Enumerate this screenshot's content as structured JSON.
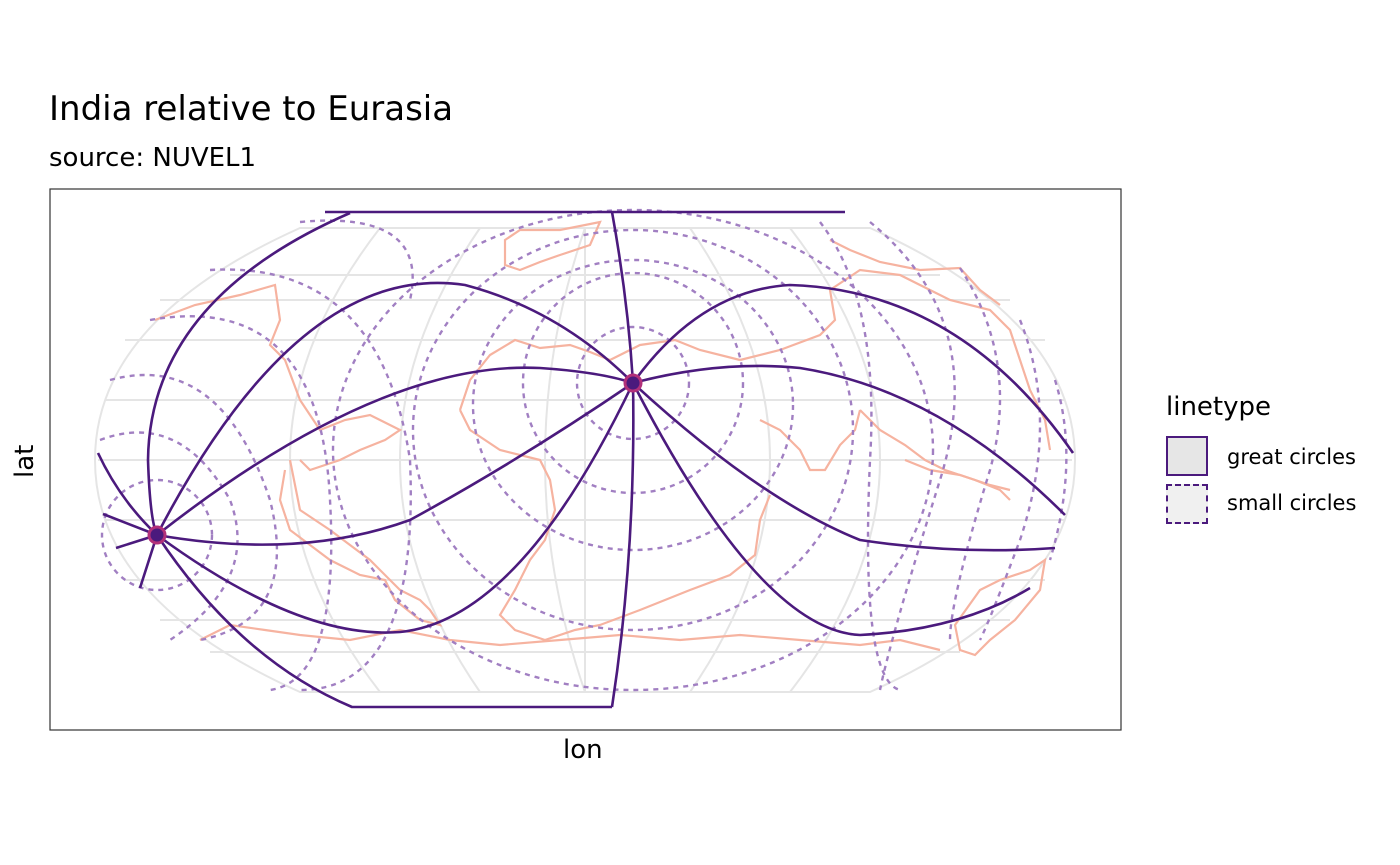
{
  "title": "India relative to Eurasia",
  "subtitle": "source: NUVEL1",
  "axes": {
    "xlabel": "lon",
    "ylabel": "lat"
  },
  "legend": {
    "title": "linetype",
    "items": [
      {
        "label": "great circles",
        "style": "solid"
      },
      {
        "label": "small circles",
        "style": "dashed"
      }
    ]
  },
  "colors": {
    "circles": "#4b1a7d",
    "small_circles": "#a17fc2",
    "coastlines": "#f6b3a0",
    "graticule": "#e5e5e5",
    "pole_fill": "#7b1f6e"
  },
  "map": {
    "projection": "robinson-like",
    "layers": [
      "graticule",
      "coastlines",
      "great-circles",
      "small-circles",
      "euler-poles"
    ],
    "euler_poles": 2
  }
}
